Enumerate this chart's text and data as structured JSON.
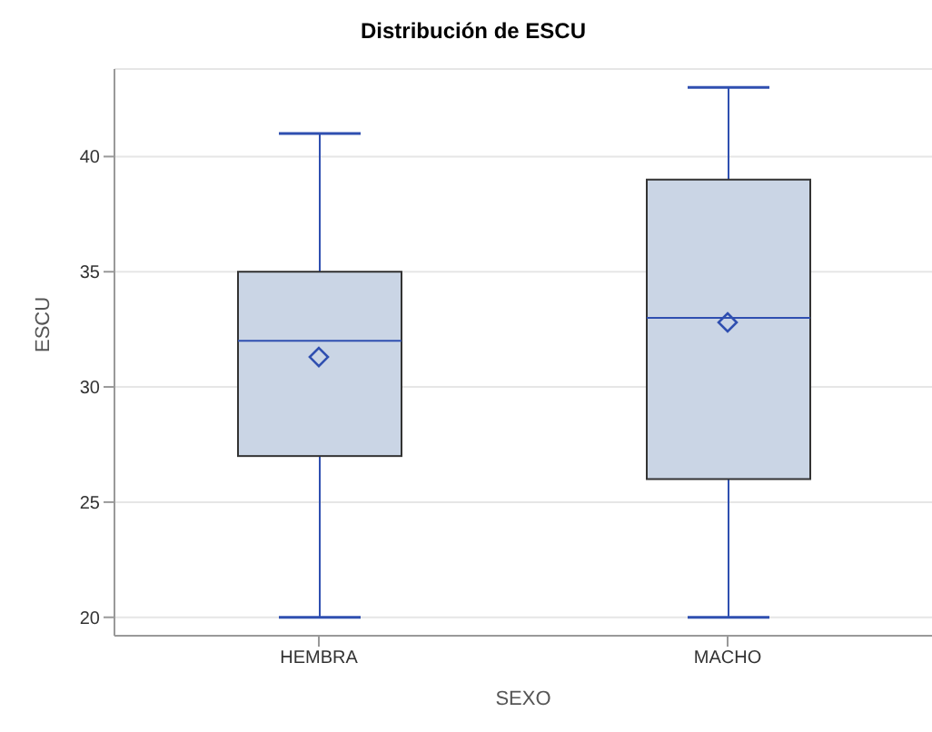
{
  "chart_data": {
    "type": "box",
    "title": "Distribución de ESCU",
    "xlabel": "SEXO",
    "ylabel": "ESCU",
    "categories": [
      "HEMBRA",
      "MACHO"
    ],
    "boxes": [
      {
        "low": 20,
        "q1": 27,
        "median": 32,
        "q3": 35,
        "high": 41,
        "mean": 31.3
      },
      {
        "low": 20,
        "q1": 26,
        "median": 33,
        "q3": 39,
        "high": 43,
        "mean": 32.8
      }
    ],
    "color": "#cad5e5",
    "ylim": [
      19.2,
      43.8
    ],
    "yticks": [
      20,
      25,
      30,
      35,
      40
    ],
    "grid": "y",
    "marker": "diamond"
  }
}
